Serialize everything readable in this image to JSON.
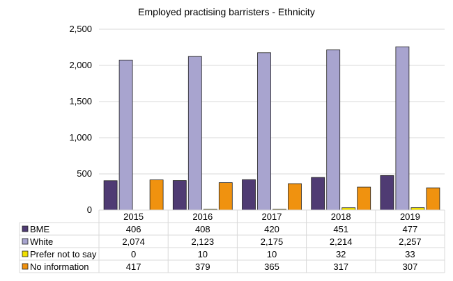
{
  "chart_data": {
    "type": "bar",
    "title": "Employed practising barristers - Ethnicity",
    "categories": [
      "2015",
      "2016",
      "2017",
      "2018",
      "2019"
    ],
    "series": [
      {
        "name": "BME",
        "values": [
          406,
          408,
          420,
          451,
          477
        ],
        "labels": [
          "406",
          "408",
          "420",
          "451",
          "477"
        ],
        "color": "#4f3b73"
      },
      {
        "name": "White",
        "values": [
          2074,
          2123,
          2175,
          2214,
          2257
        ],
        "labels": [
          "2,074",
          "2,123",
          "2,175",
          "2,214",
          "2,257"
        ],
        "color": "#a8a4cf"
      },
      {
        "name": "Prefer not to say",
        "values": [
          0,
          10,
          10,
          32,
          33
        ],
        "labels": [
          "0",
          "10",
          "10",
          "32",
          "33"
        ],
        "color": "#f0e000"
      },
      {
        "name": "No information",
        "values": [
          417,
          379,
          365,
          317,
          307
        ],
        "labels": [
          "417",
          "379",
          "365",
          "317",
          "307"
        ],
        "color": "#f0920f"
      }
    ],
    "yticks": [
      "0",
      "500",
      "1,000",
      "1,500",
      "2,000",
      "2,500"
    ],
    "ylim": [
      0,
      2500
    ],
    "grid": true,
    "legend": "data table with legend keys below plot"
  }
}
